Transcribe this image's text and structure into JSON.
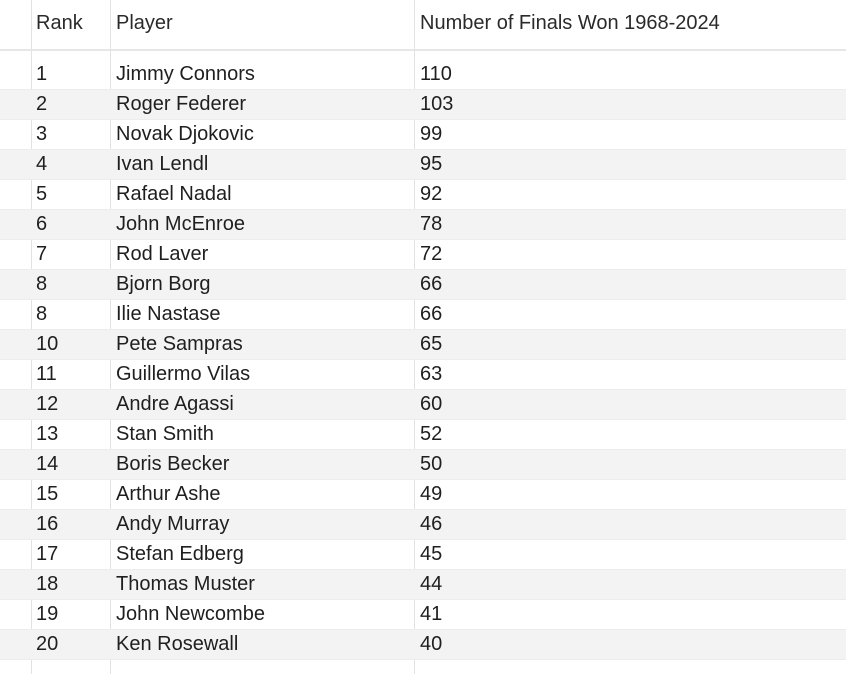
{
  "headers": {
    "rank": "Rank",
    "player": "Player",
    "finals": "Number of Finals Won 1968-2024"
  },
  "rows": [
    {
      "rank": "1",
      "player": "Jimmy Connors",
      "finals": "110"
    },
    {
      "rank": "2",
      "player": "Roger Federer",
      "finals": "103"
    },
    {
      "rank": "3",
      "player": "Novak Djokovic",
      "finals": "99"
    },
    {
      "rank": "4",
      "player": "Ivan Lendl",
      "finals": "95"
    },
    {
      "rank": "5",
      "player": "Rafael Nadal",
      "finals": "92"
    },
    {
      "rank": "6",
      "player": "John McEnroe",
      "finals": "78"
    },
    {
      "rank": "7",
      "player": "Rod Laver",
      "finals": "72"
    },
    {
      "rank": "8",
      "player": "Bjorn Borg",
      "finals": "66"
    },
    {
      "rank": "8",
      "player": "Ilie Nastase",
      "finals": "66"
    },
    {
      "rank": "10",
      "player": "Pete Sampras",
      "finals": "65"
    },
    {
      "rank": "11",
      "player": "Guillermo Vilas",
      "finals": "63"
    },
    {
      "rank": "12",
      "player": "Andre Agassi",
      "finals": "60"
    },
    {
      "rank": "13",
      "player": "Stan Smith",
      "finals": "52"
    },
    {
      "rank": "14",
      "player": "Boris Becker",
      "finals": "50"
    },
    {
      "rank": "15",
      "player": "Arthur Ashe",
      "finals": "49"
    },
    {
      "rank": "16",
      "player": "Andy Murray",
      "finals": "46"
    },
    {
      "rank": "17",
      "player": "Stefan Edberg",
      "finals": "45"
    },
    {
      "rank": "18",
      "player": "Thomas Muster",
      "finals": "44"
    },
    {
      "rank": "19",
      "player": "John Newcombe",
      "finals": "41"
    },
    {
      "rank": "20",
      "player": "Ken Rosewall",
      "finals": "40"
    }
  ],
  "colors": {
    "alt_row": "#f3f3f3",
    "grid_line": "#e2e2e2",
    "text": "#1f1f1f"
  }
}
